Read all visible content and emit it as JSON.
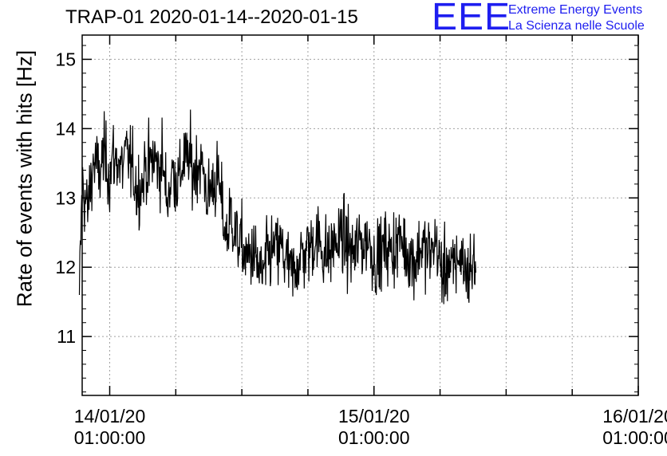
{
  "header": {
    "title": "TRAP-01 2020-01-14--2020-01-15",
    "logo_mark": "EEE",
    "logo_line1": "Extreme Energy Events",
    "logo_line2": "La Scienza nelle Scuole"
  },
  "colors": {
    "logo": "#1e1ef0",
    "series": "#000000",
    "grid": "#a0a0a0"
  },
  "chart_data": {
    "type": "line",
    "title": "TRAP-01 2020-01-14--2020-01-15",
    "ylabel": "Rate of events with hits [Hz]",
    "xlabel": "",
    "xlim": [
      "2020-01-13 22:30",
      "2020-01-16 01:00"
    ],
    "ylim": [
      10.15,
      15.35
    ],
    "y_ticks": [
      11,
      12,
      13,
      14,
      15
    ],
    "x_ticks": [
      {
        "value": "2020-01-14 01:00",
        "label_date": "14/01/20",
        "label_time": "01:00:00"
      },
      {
        "value": "2020-01-15 01:00",
        "label_date": "15/01/20",
        "label_time": "01:00:00"
      },
      {
        "value": "2020-01-16 01:00",
        "label_date": "16/01/20",
        "label_time": "01:00:00"
      }
    ],
    "grid": true,
    "series": [
      {
        "x_start": "2020-01-13 22:15",
        "x_step_minutes": 15,
        "values": [
          11.6,
          13.2,
          13.0,
          12.8,
          13.2,
          13.5,
          13.5,
          13.3,
          13.5,
          13.6,
          13.5,
          13.3,
          13.6,
          13.5,
          13.6,
          13.4,
          13.5,
          13.6,
          13.6,
          13.4,
          13.3,
          13.1,
          13.2,
          13.2,
          13.5,
          13.4,
          13.5,
          13.6,
          13.5,
          13.4,
          13.6,
          13.2,
          13.0,
          13.2,
          13.4,
          13.3,
          13.2,
          13.4,
          13.6,
          13.5,
          13.6,
          13.4,
          13.4,
          13.5,
          13.5,
          13.4,
          13.1,
          13.0,
          13.2,
          13.2,
          13.3,
          13.1,
          12.8,
          12.5,
          12.5,
          12.8,
          12.6,
          12.4,
          12.4,
          12.3,
          12.2,
          12.1,
          12.2,
          12.2,
          12.1,
          12.0,
          11.9,
          11.9,
          12.1,
          12.2,
          12.2,
          12.3,
          12.2,
          12.3,
          12.2,
          12.1,
          12.0,
          11.9,
          11.9,
          12.1,
          12.1,
          12.2,
          12.2,
          12.3,
          12.3,
          12.4,
          12.4,
          12.4,
          12.3,
          12.2,
          12.2,
          12.2,
          12.3,
          12.4,
          12.3,
          12.5,
          12.4,
          12.3,
          12.3,
          12.2,
          12.2,
          12.3,
          12.4,
          12.3,
          12.4,
          12.4,
          12.3,
          12.1,
          12.1,
          12.2,
          12.2,
          12.3,
          12.3,
          12.2,
          12.3,
          12.3,
          12.4,
          12.4,
          12.3,
          12.2,
          12.2,
          12.1,
          12.1,
          12.2,
          12.3,
          12.3,
          12.2,
          12.2,
          12.2,
          12.4,
          12.3,
          12.0,
          11.9,
          12.0,
          12.1,
          11.9,
          12.0,
          12.1,
          12.2,
          12.1,
          12.0,
          11.9,
          12.0,
          12.0,
          12.1
        ]
      }
    ]
  }
}
